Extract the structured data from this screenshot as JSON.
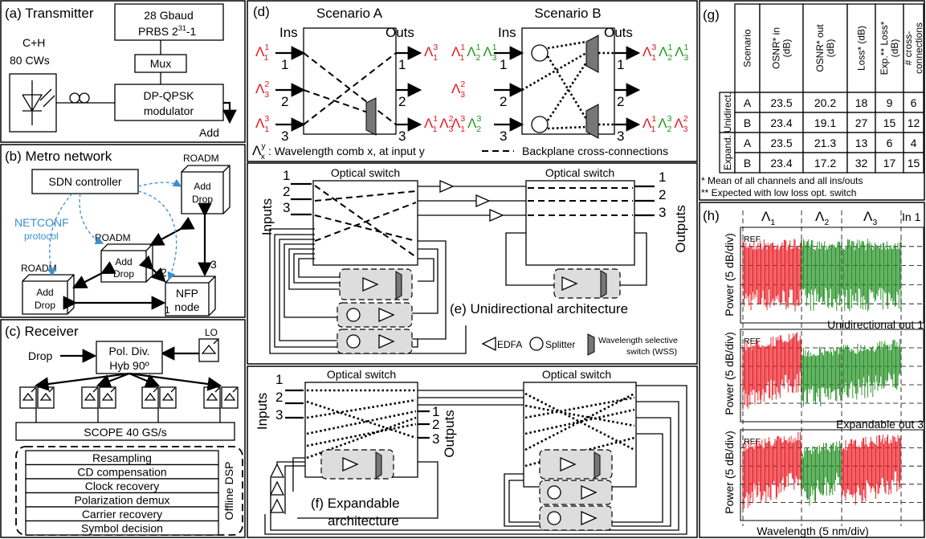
{
  "symbol": "Λ",
  "a": {
    "title": "(a) Transmitter",
    "source": [
      "C+H",
      "80 CWs"
    ],
    "prbs": [
      "28 Gbaud",
      "PRBS 2",
      "31",
      "-1"
    ],
    "mux": "Mux",
    "modulator": [
      "DP-QPSK",
      "modulator"
    ],
    "add": "Add"
  },
  "b": {
    "title": "(b) Metro network",
    "sdn": "SDN controller",
    "roadm": "ROADM",
    "add": "Add",
    "drop": "Drop",
    "netconf": "NETCONF",
    "protocol": "protocol",
    "nfp": [
      "NFP",
      "node"
    ],
    "links": [
      "1",
      "2",
      "3"
    ]
  },
  "c": {
    "title": "(c) Receiver",
    "lo": "LO",
    "drop": "Drop",
    "hybrid": [
      "Pol. Div.",
      "Hyb  90º"
    ],
    "scope": "SCOPE 40 GS/s",
    "dsp": [
      "Resampling",
      "CD compensation",
      "Clock recovery",
      "Polarization demux",
      "Carrier recovery",
      "Symbol decision"
    ],
    "dsp_label": "Offline DSP"
  },
  "d": {
    "title": "(d)",
    "ins": "Ins",
    "outs": "Outs",
    "ports": [
      "1",
      "2",
      "3"
    ],
    "scenarios": [
      {
        "name": "Scenario A",
        "color": "#e8141c",
        "inputs": [
          [
            {
              "sup": "1",
              "sub": "1",
              "color": "#e8141c"
            }
          ],
          [
            {
              "sup": "2",
              "sub": "3",
              "color": "#e8141c"
            }
          ],
          [
            {
              "sup": "3",
              "sub": "1",
              "color": "#e8141c"
            }
          ]
        ],
        "outputs": {
          "1": [
            {
              "sup": "3",
              "sub": "1",
              "color": "#e8141c"
            }
          ],
          "3": [
            {
              "sup": "1",
              "sub": "1",
              "color": "#e8141c"
            },
            {
              "sup": "2",
              "sub": "3",
              "color": "#e8141c"
            }
          ]
        }
      },
      {
        "name": "Scenario B",
        "color": "#1a9a1a",
        "inputs": [
          [
            {
              "sup": "1",
              "sub": "1",
              "color": "#e8141c"
            },
            {
              "sup": "1",
              "sub": "2",
              "color": "#1a9a1a"
            },
            {
              "sup": "1",
              "sub": "3",
              "color": "#1a9a1a"
            }
          ],
          [
            {
              "sup": "2",
              "sub": "3",
              "color": "#e8141c"
            }
          ],
          [
            {
              "sup": "3",
              "sub": "1",
              "color": "#e8141c"
            },
            {
              "sup": "3",
              "sub": "2",
              "color": "#1a9a1a"
            }
          ]
        ],
        "outputs": {
          "1": [
            {
              "sup": "3",
              "sub": "1",
              "color": "#e8141c"
            },
            {
              "sup": "1",
              "sub": "2",
              "color": "#1a9a1a"
            },
            {
              "sup": "1",
              "sub": "3",
              "color": "#1a9a1a"
            }
          ],
          "3": [
            {
              "sup": "1",
              "sub": "1",
              "color": "#e8141c"
            },
            {
              "sup": "3",
              "sub": "2",
              "color": "#1a9a1a"
            },
            {
              "sup": "2",
              "sub": "3",
              "color": "#e8141c"
            }
          ]
        }
      }
    ],
    "legend_comb": [
      {
        "sup": "y",
        "sub": "x"
      }
    ],
    "legend_comb_text": ": Wavelength comb x, at input y",
    "legend_backplane": "Backplane cross-connections"
  },
  "e": {
    "title": "(e) Unidirectional architecture",
    "switch": "Optical switch",
    "inputs": "Inputs",
    "outputs": "Outputs",
    "ports": [
      "1",
      "2",
      "3"
    ],
    "legend": [
      "EDFA",
      "Splitter",
      "Wavelength selective",
      "switch (WSS)"
    ]
  },
  "f": {
    "title": [
      "(f) Expandable",
      "architecture"
    ],
    "switch": "Optical switch",
    "inputs": "Inputs",
    "outputs": "Outputs",
    "ports": [
      "1",
      "2",
      "3"
    ]
  },
  "g": {
    "title": "(g)",
    "headers": [
      [
        "Scenario"
      ],
      [
        "OSNR* in",
        "(dB)"
      ],
      [
        "OSNR* out",
        "(dB)"
      ],
      [
        "Loss* (dB)"
      ],
      [
        "Exp.** Loss*",
        "(dB)"
      ],
      [
        "# cross-",
        "connections"
      ]
    ],
    "groups": [
      "Unidirect.",
      "Expand."
    ],
    "rows": [
      [
        "A",
        "23.5",
        "20.2",
        "18",
        "9",
        "6"
      ],
      [
        "B",
        "23.4",
        "19.1",
        "27",
        "15",
        "12"
      ],
      [
        "A",
        "23.5",
        "21.3",
        "13",
        "6",
        "4"
      ],
      [
        "B",
        "23.4",
        "17.2",
        "32",
        "17",
        "15"
      ]
    ],
    "notes": [
      "* Mean of all channels and all ins/outs",
      "** Expected with low loss opt. switch"
    ]
  },
  "h": {
    "title": "(h)",
    "bands": [
      [
        {
          "sub": "1"
        }
      ],
      [
        {
          "sub": "2"
        }
      ],
      [
        {
          "sub": "3"
        }
      ]
    ],
    "input": "In 1",
    "ylabel": "Power (5 dB/div)",
    "ref": "REF",
    "subtitles": [
      "Unidirectional out 1",
      "Expandable out 3"
    ],
    "xlabel": "Wavelength (5 nm/div)"
  }
}
